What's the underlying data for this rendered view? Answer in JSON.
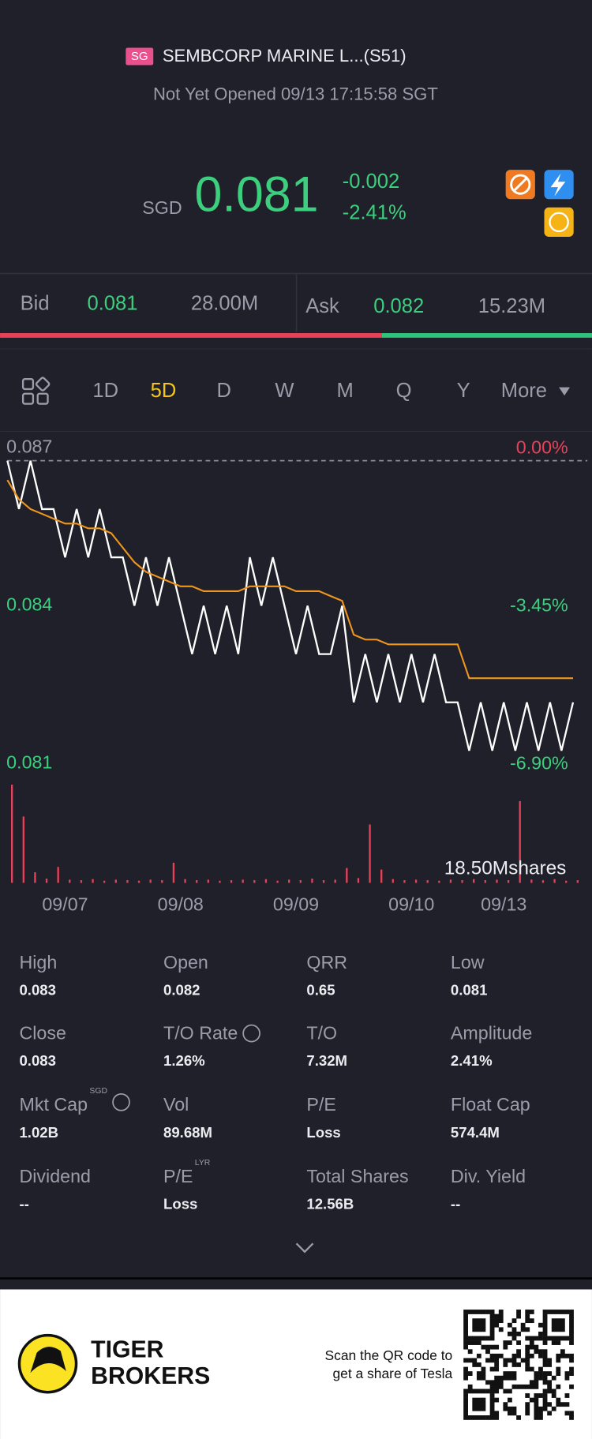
{
  "header": {
    "badge": "SG",
    "title": "SEMBCORP MARINE L...(S51)",
    "status": "Not Yet Opened 09/13 17:15:58 SGT"
  },
  "quote": {
    "currency": "SGD",
    "price": "0.081",
    "change": "-0.002",
    "change_pct": "-2.41%"
  },
  "order_book": {
    "bid_label": "Bid",
    "bid_price": "0.081",
    "bid_size": "28.00M",
    "ask_label": "Ask",
    "ask_price": "0.082",
    "ask_size": "15.23M"
  },
  "tabs": [
    "1D",
    "5D",
    "D",
    "W",
    "M",
    "Q",
    "Y",
    "More"
  ],
  "active_tab": 1,
  "chart_data": {
    "type": "line",
    "x": [
      0,
      0.1,
      0.2,
      0.3,
      0.4,
      0.5,
      0.6,
      0.7,
      0.8,
      0.9,
      1,
      1.1,
      1.2,
      1.3,
      1.4,
      1.5,
      1.6,
      1.7,
      1.8,
      1.9,
      2,
      2.1,
      2.2,
      2.3,
      2.4,
      2.5,
      2.6,
      2.7,
      2.8,
      2.9,
      3,
      3.1,
      3.2,
      3.3,
      3.4,
      3.5,
      3.6,
      3.7,
      3.8,
      3.9,
      4,
      4.1,
      4.2,
      4.3,
      4.4,
      4.5,
      4.6,
      4.7,
      4.8,
      4.9
    ],
    "series": [
      {
        "color": "#ffffff",
        "values": [
          0.087,
          0.086,
          0.087,
          0.086,
          0.086,
          0.085,
          0.086,
          0.085,
          0.086,
          0.085,
          0.085,
          0.084,
          0.085,
          0.084,
          0.085,
          0.084,
          0.083,
          0.084,
          0.083,
          0.084,
          0.083,
          0.085,
          0.084,
          0.085,
          0.084,
          0.083,
          0.084,
          0.083,
          0.083,
          0.084,
          0.082,
          0.083,
          0.082,
          0.083,
          0.082,
          0.083,
          0.082,
          0.083,
          0.082,
          0.082,
          0.081,
          0.082,
          0.081,
          0.082,
          0.081,
          0.082,
          0.081,
          0.082,
          0.081,
          0.082
        ]
      },
      {
        "color": "#f0961e",
        "values": [
          0.0866,
          0.0862,
          0.086,
          0.0859,
          0.0858,
          0.0857,
          0.0857,
          0.0856,
          0.0856,
          0.0855,
          0.0852,
          0.0849,
          0.0847,
          0.0846,
          0.0845,
          0.0844,
          0.0844,
          0.0843,
          0.0843,
          0.0843,
          0.0843,
          0.0844,
          0.0844,
          0.0844,
          0.0844,
          0.0843,
          0.0843,
          0.0843,
          0.0842,
          0.0841,
          0.0834,
          0.0833,
          0.0833,
          0.0832,
          0.0832,
          0.0832,
          0.0832,
          0.0832,
          0.0832,
          0.0832,
          0.0825,
          0.0825,
          0.0825,
          0.0825,
          0.0825,
          0.0825,
          0.0825,
          0.0825,
          0.0825,
          0.0825
        ]
      }
    ],
    "volume": {
      "color": "#e8415a",
      "label": "18.50Mshares",
      "lim": [
        0,
        18500000
      ],
      "values": [
        18500000,
        12500000,
        2000000,
        800000,
        3000000,
        600000,
        500000,
        700000,
        400000,
        600000,
        500000,
        400000,
        600000,
        500000,
        3800000,
        700000,
        500000,
        600000,
        400000,
        500000,
        600000,
        500000,
        700000,
        400000,
        600000,
        500000,
        800000,
        500000,
        600000,
        2800000,
        900000,
        11000000,
        2500000,
        700000,
        500000,
        600000,
        500000,
        400000,
        600000,
        500000,
        700000,
        500000,
        600000,
        500000,
        15400000,
        600000,
        500000,
        700000,
        400000,
        500000
      ]
    },
    "xlim": [
      0,
      5
    ],
    "xticks": [
      {
        "value": 0.5,
        "label": "09/07"
      },
      {
        "value": 1.5,
        "label": "09/08"
      },
      {
        "value": 2.5,
        "label": "09/09"
      },
      {
        "value": 3.5,
        "label": "09/10"
      },
      {
        "value": 4.3,
        "label": "09/13"
      }
    ],
    "ylim": [
      0.081,
      0.087
    ],
    "yticks": [
      0.087,
      0.084,
      0.081
    ],
    "ytick_colors": [
      "#9a9caa",
      "#3ccf7e",
      "#3ccf7e"
    ],
    "pct_labels": [
      "0.00%",
      "-3.45%",
      "-6.90%"
    ],
    "pct_colors": [
      "#e8415a",
      "#3ccf7e",
      "#3ccf7e"
    ]
  },
  "stats": [
    [
      {
        "label": "High",
        "value": "0.083"
      },
      {
        "label": "Open",
        "value": "0.082"
      },
      {
        "label": "QRR",
        "value": "0.65"
      },
      {
        "label": "Low",
        "value": "0.081"
      }
    ],
    [
      {
        "label": "Close",
        "value": "0.083"
      },
      {
        "label": "T/O Rate",
        "value": "1.26%"
      },
      {
        "label": "T/O",
        "value": "7.32M"
      },
      {
        "label": "Amplitude",
        "value": "2.41%"
      }
    ],
    [
      {
        "label": "Mkt Cap",
        "sup": "SGD",
        "value": "1.02B"
      },
      {
        "label": "Vol",
        "value": "89.68M"
      },
      {
        "label": "P/E",
        "value": "Loss"
      },
      {
        "label": "Float Cap",
        "value": "574.4M"
      }
    ],
    [
      {
        "label": "Dividend",
        "value": "--"
      },
      {
        "label": "P/E",
        "sup": "LYR",
        "value": "Loss"
      },
      {
        "label": "Total Shares",
        "value": "12.56B"
      },
      {
        "label": "Div. Yield",
        "value": "--"
      }
    ]
  ],
  "footer": {
    "brand_line1": "TIGER",
    "brand_line2": "BROKERS",
    "promo_line1": "Scan the QR code to",
    "promo_line2": "get a share of Tesla"
  }
}
